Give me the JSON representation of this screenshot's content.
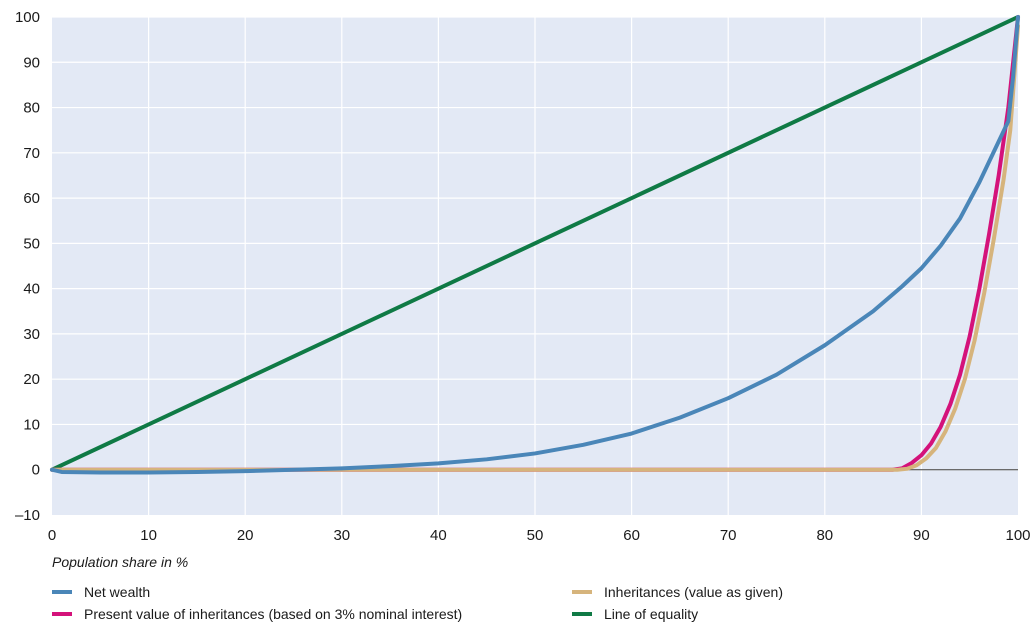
{
  "chart_data": {
    "type": "line",
    "xlabel": "Population share in %",
    "ylabel": "",
    "xlim": [
      0,
      100
    ],
    "ylim": [
      -10,
      100
    ],
    "x_ticks": [
      "0",
      "10",
      "20",
      "30",
      "40",
      "50",
      "60",
      "70",
      "80",
      "90",
      "100"
    ],
    "y_ticks": [
      "–10",
      "0",
      "10",
      "20",
      "30",
      "40",
      "50",
      "60",
      "70",
      "80",
      "90",
      "100"
    ],
    "grid": true,
    "legend_position": "bottom",
    "background_color": "#e3e9f5",
    "series": [
      {
        "name": "Net wealth",
        "color": "#4a86b8",
        "points": [
          [
            0,
            0
          ],
          [
            1,
            -0.5
          ],
          [
            5,
            -0.6
          ],
          [
            10,
            -0.6
          ],
          [
            15,
            -0.5
          ],
          [
            20,
            -0.3
          ],
          [
            25,
            0
          ],
          [
            30,
            0.3
          ],
          [
            35,
            0.8
          ],
          [
            40,
            1.4
          ],
          [
            45,
            2.3
          ],
          [
            50,
            3.6
          ],
          [
            55,
            5.5
          ],
          [
            60,
            8.0
          ],
          [
            65,
            11.5
          ],
          [
            70,
            15.8
          ],
          [
            75,
            21.0
          ],
          [
            80,
            27.5
          ],
          [
            85,
            35.0
          ],
          [
            88,
            40.5
          ],
          [
            90,
            44.5
          ],
          [
            92,
            49.5
          ],
          [
            94,
            55.5
          ],
          [
            96,
            63.5
          ],
          [
            98,
            72.5
          ],
          [
            99,
            77.0
          ],
          [
            99.5,
            87.0
          ],
          [
            100,
            100
          ]
        ]
      },
      {
        "name": "Present value of inheritances (based on 3% nominal interest)",
        "color": "#d4127a",
        "points": [
          [
            0,
            0
          ],
          [
            87,
            0
          ],
          [
            88,
            0.3
          ],
          [
            89,
            1.5
          ],
          [
            90,
            3.2
          ],
          [
            91,
            5.8
          ],
          [
            92,
            9.5
          ],
          [
            93,
            14.5
          ],
          [
            94,
            21.0
          ],
          [
            95,
            29.5
          ],
          [
            96,
            40.0
          ],
          [
            97,
            52.0
          ],
          [
            98,
            65.0
          ],
          [
            99,
            80.0
          ],
          [
            100,
            100
          ]
        ]
      },
      {
        "name": "Inheritances (value as given)",
        "color": "#d6b47c",
        "points": [
          [
            0,
            0
          ],
          [
            87.5,
            0
          ],
          [
            88.5,
            0.2
          ],
          [
            89.5,
            1.0
          ],
          [
            90.5,
            2.5
          ],
          [
            91.5,
            4.8
          ],
          [
            92.5,
            8.5
          ],
          [
            93.5,
            13.5
          ],
          [
            94.5,
            20.0
          ],
          [
            95.5,
            28.5
          ],
          [
            96.5,
            39.0
          ],
          [
            97.5,
            51.0
          ],
          [
            98.5,
            64.0
          ],
          [
            99.2,
            75.0
          ],
          [
            100,
            98.0
          ]
        ]
      },
      {
        "name": "Line of equality",
        "color": "#0f7a45",
        "points": [
          [
            0,
            0
          ],
          [
            100,
            100
          ]
        ]
      }
    ]
  }
}
